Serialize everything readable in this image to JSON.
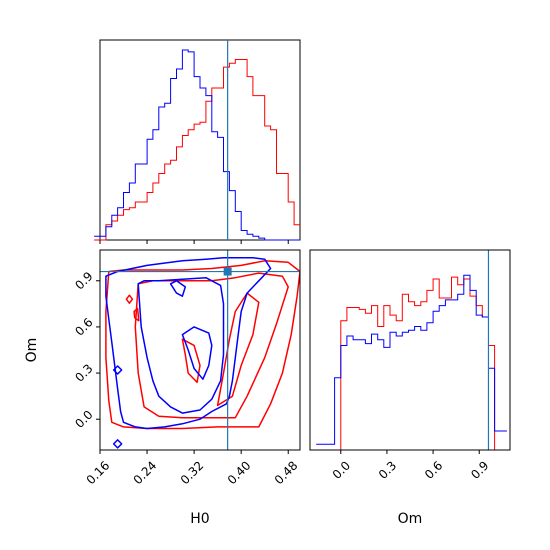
{
  "chart_data": {
    "type": "corner",
    "parameters": [
      "H0",
      "Om"
    ],
    "colors": {
      "chain1": "#ff0000",
      "chain2": "#0000ff",
      "truth": "#1f77b4"
    },
    "truth": {
      "H0": 0.377,
      "Om": 0.96
    },
    "axes": {
      "H0": {
        "range": [
          0.16,
          0.5
        ],
        "ticks": [
          0.16,
          0.24,
          0.32,
          0.4,
          0.48
        ],
        "ticklabels": [
          "0.16",
          "0.24",
          "0.32",
          "0.40",
          "0.48"
        ],
        "label": "H0"
      },
      "Om": {
        "range": [
          -0.2,
          1.1
        ],
        "ticks": [
          0.0,
          0.3,
          0.6,
          0.9
        ],
        "ticklabels": [
          "0.0",
          "0.3",
          "0.6",
          "0.9"
        ],
        "label": "Om"
      }
    },
    "hist_H0": {
      "red": [
        [
          0.155,
          0.0
        ],
        [
          0.165,
          0.0
        ],
        [
          0.175,
          0.08
        ],
        [
          0.185,
          0.1
        ],
        [
          0.195,
          0.13
        ],
        [
          0.205,
          0.16
        ],
        [
          0.215,
          0.17
        ],
        [
          0.225,
          0.2
        ],
        [
          0.235,
          0.2
        ],
        [
          0.245,
          0.25
        ],
        [
          0.255,
          0.3
        ],
        [
          0.265,
          0.35
        ],
        [
          0.275,
          0.4
        ],
        [
          0.285,
          0.42
        ],
        [
          0.295,
          0.49
        ],
        [
          0.305,
          0.55
        ],
        [
          0.315,
          0.58
        ],
        [
          0.325,
          0.61
        ],
        [
          0.335,
          0.62
        ],
        [
          0.345,
          0.73
        ],
        [
          0.355,
          0.8
        ],
        [
          0.365,
          0.8
        ],
        [
          0.375,
          0.91
        ],
        [
          0.385,
          0.93
        ],
        [
          0.395,
          0.95
        ],
        [
          0.405,
          0.95
        ],
        [
          0.415,
          0.86
        ],
        [
          0.425,
          0.76
        ],
        [
          0.435,
          0.76
        ],
        [
          0.445,
          0.6
        ],
        [
          0.455,
          0.58
        ],
        [
          0.465,
          0.35
        ],
        [
          0.475,
          0.35
        ],
        [
          0.485,
          0.2
        ],
        [
          0.495,
          0.08
        ]
      ],
      "blue": [
        [
          0.155,
          0.02
        ],
        [
          0.165,
          0.02
        ],
        [
          0.175,
          0.07
        ],
        [
          0.185,
          0.13
        ],
        [
          0.195,
          0.17
        ],
        [
          0.205,
          0.25
        ],
        [
          0.215,
          0.3
        ],
        [
          0.225,
          0.4
        ],
        [
          0.235,
          0.4
        ],
        [
          0.245,
          0.53
        ],
        [
          0.255,
          0.58
        ],
        [
          0.265,
          0.7
        ],
        [
          0.275,
          0.72
        ],
        [
          0.285,
          0.85
        ],
        [
          0.295,
          0.9
        ],
        [
          0.305,
          1.0
        ],
        [
          0.315,
          0.99
        ],
        [
          0.325,
          0.86
        ],
        [
          0.335,
          0.8
        ],
        [
          0.345,
          0.76
        ],
        [
          0.355,
          0.57
        ],
        [
          0.365,
          0.54
        ],
        [
          0.375,
          0.36
        ],
        [
          0.385,
          0.26
        ],
        [
          0.395,
          0.15
        ],
        [
          0.405,
          0.05
        ],
        [
          0.415,
          0.03
        ],
        [
          0.425,
          0.02
        ],
        [
          0.435,
          0.01
        ],
        [
          0.445,
          0.0
        ],
        [
          0.455,
          0.0
        ],
        [
          0.465,
          0.0
        ],
        [
          0.475,
          0.0
        ],
        [
          0.485,
          0.0
        ],
        [
          0.495,
          0.0
        ]
      ]
    },
    "hist_Om": {
      "red": [
        [
          -0.14,
          0.0
        ],
        [
          -0.1,
          0.0
        ],
        [
          -0.06,
          0.0
        ],
        [
          -0.02,
          0.0
        ],
        [
          0.02,
          0.68
        ],
        [
          0.06,
          0.75
        ],
        [
          0.1,
          0.75
        ],
        [
          0.14,
          0.74
        ],
        [
          0.18,
          0.72
        ],
        [
          0.22,
          0.76
        ],
        [
          0.26,
          0.65
        ],
        [
          0.3,
          0.76
        ],
        [
          0.34,
          0.71
        ],
        [
          0.38,
          0.68
        ],
        [
          0.42,
          0.82
        ],
        [
          0.46,
          0.78
        ],
        [
          0.5,
          0.76
        ],
        [
          0.54,
          0.78
        ],
        [
          0.58,
          0.84
        ],
        [
          0.62,
          0.9
        ],
        [
          0.66,
          0.8
        ],
        [
          0.7,
          0.8
        ],
        [
          0.74,
          0.91
        ],
        [
          0.78,
          0.87
        ],
        [
          0.82,
          0.9
        ],
        [
          0.86,
          0.81
        ],
        [
          0.9,
          0.76
        ],
        [
          0.94,
          0.7
        ],
        [
          0.98,
          0.55
        ],
        [
          1.02,
          0.0
        ],
        [
          1.06,
          0.0
        ]
      ],
      "blue": [
        [
          -0.14,
          0.03
        ],
        [
          -0.1,
          0.03
        ],
        [
          -0.06,
          0.03
        ],
        [
          -0.02,
          0.38
        ],
        [
          0.02,
          0.55
        ],
        [
          0.06,
          0.6
        ],
        [
          0.1,
          0.58
        ],
        [
          0.14,
          0.58
        ],
        [
          0.18,
          0.56
        ],
        [
          0.22,
          0.61
        ],
        [
          0.26,
          0.58
        ],
        [
          0.3,
          0.54
        ],
        [
          0.34,
          0.62
        ],
        [
          0.38,
          0.6
        ],
        [
          0.42,
          0.62
        ],
        [
          0.46,
          0.63
        ],
        [
          0.5,
          0.65
        ],
        [
          0.54,
          0.63
        ],
        [
          0.58,
          0.67
        ],
        [
          0.62,
          0.73
        ],
        [
          0.66,
          0.76
        ],
        [
          0.7,
          0.79
        ],
        [
          0.74,
          0.79
        ],
        [
          0.78,
          0.82
        ],
        [
          0.82,
          0.92
        ],
        [
          0.86,
          0.84
        ],
        [
          0.9,
          0.71
        ],
        [
          0.94,
          0.7
        ],
        [
          0.98,
          0.43
        ],
        [
          1.02,
          0.1
        ],
        [
          1.06,
          0.1
        ]
      ]
    },
    "contours_2d": {
      "red": [
        [
          [
            0.175,
            0.96
          ],
          [
            0.17,
            0.7
          ],
          [
            0.17,
            0.4
          ],
          [
            0.175,
            0.12
          ],
          [
            0.18,
            -0.02
          ],
          [
            0.2,
            -0.05
          ],
          [
            0.24,
            -0.06
          ],
          [
            0.3,
            -0.06
          ],
          [
            0.36,
            -0.05
          ],
          [
            0.4,
            -0.05
          ],
          [
            0.43,
            -0.05
          ],
          [
            0.45,
            0.1
          ],
          [
            0.47,
            0.3
          ],
          [
            0.485,
            0.55
          ],
          [
            0.495,
            0.8
          ],
          [
            0.5,
            0.96
          ],
          [
            0.48,
            1.02
          ],
          [
            0.44,
            1.03
          ],
          [
            0.4,
            1.0
          ],
          [
            0.35,
            0.98
          ],
          [
            0.3,
            0.97
          ],
          [
            0.25,
            0.97
          ],
          [
            0.2,
            0.97
          ],
          [
            0.175,
            0.96
          ]
        ],
        [
          [
            0.225,
            0.88
          ],
          [
            0.22,
            0.6
          ],
          [
            0.225,
            0.3
          ],
          [
            0.235,
            0.08
          ],
          [
            0.26,
            0.02
          ],
          [
            0.3,
            0.01
          ],
          [
            0.35,
            0.01
          ],
          [
            0.39,
            0.01
          ],
          [
            0.41,
            0.15
          ],
          [
            0.44,
            0.4
          ],
          [
            0.46,
            0.62
          ],
          [
            0.48,
            0.86
          ],
          [
            0.47,
            0.93
          ],
          [
            0.43,
            0.95
          ],
          [
            0.39,
            0.92
          ],
          [
            0.35,
            0.9
          ],
          [
            0.3,
            0.9
          ],
          [
            0.25,
            0.9
          ],
          [
            0.225,
            0.88
          ]
        ],
        [
          [
            0.36,
            0.09
          ],
          [
            0.37,
            0.3
          ],
          [
            0.38,
            0.52
          ],
          [
            0.39,
            0.7
          ],
          [
            0.41,
            0.82
          ],
          [
            0.43,
            0.76
          ],
          [
            0.42,
            0.55
          ],
          [
            0.4,
            0.35
          ],
          [
            0.385,
            0.15
          ],
          [
            0.36,
            0.09
          ]
        ],
        [
          [
            0.3,
            0.52
          ],
          [
            0.305,
            0.42
          ],
          [
            0.31,
            0.3
          ],
          [
            0.325,
            0.24
          ],
          [
            0.33,
            0.35
          ],
          [
            0.32,
            0.48
          ],
          [
            0.3,
            0.52
          ]
        ],
        [
          [
            0.218,
            0.7
          ],
          [
            0.224,
            0.72
          ],
          [
            0.226,
            0.64
          ],
          [
            0.219,
            0.66
          ],
          [
            0.218,
            0.7
          ]
        ]
      ],
      "blue": [
        [
          [
            0.17,
            0.93
          ],
          [
            0.19,
            0.96
          ],
          [
            0.24,
            1.0
          ],
          [
            0.3,
            1.03
          ],
          [
            0.34,
            1.04
          ],
          [
            0.37,
            1.05
          ],
          [
            0.4,
            1.05
          ],
          [
            0.42,
            1.05
          ],
          [
            0.44,
            1.04
          ],
          [
            0.45,
            0.98
          ],
          [
            0.43,
            0.9
          ],
          [
            0.41,
            0.82
          ],
          [
            0.4,
            0.7
          ],
          [
            0.395,
            0.55
          ],
          [
            0.39,
            0.4
          ],
          [
            0.385,
            0.25
          ],
          [
            0.38,
            0.15
          ],
          [
            0.375,
            0.1
          ],
          [
            0.35,
            0.05
          ],
          [
            0.33,
            0.0
          ],
          [
            0.3,
            -0.03
          ],
          [
            0.27,
            -0.05
          ],
          [
            0.24,
            -0.06
          ],
          [
            0.22,
            -0.05
          ],
          [
            0.2,
            -0.02
          ],
          [
            0.195,
            0.05
          ],
          [
            0.19,
            0.2
          ],
          [
            0.185,
            0.35
          ],
          [
            0.18,
            0.5
          ],
          [
            0.175,
            0.65
          ],
          [
            0.17,
            0.8
          ],
          [
            0.17,
            0.93
          ]
        ],
        [
          [
            0.225,
            0.88
          ],
          [
            0.23,
            0.6
          ],
          [
            0.24,
            0.4
          ],
          [
            0.25,
            0.25
          ],
          [
            0.26,
            0.15
          ],
          [
            0.28,
            0.08
          ],
          [
            0.3,
            0.04
          ],
          [
            0.33,
            0.06
          ],
          [
            0.35,
            0.13
          ],
          [
            0.365,
            0.25
          ],
          [
            0.37,
            0.42
          ],
          [
            0.37,
            0.6
          ],
          [
            0.37,
            0.75
          ],
          [
            0.365,
            0.87
          ],
          [
            0.34,
            0.92
          ],
          [
            0.3,
            0.91
          ],
          [
            0.26,
            0.9
          ],
          [
            0.235,
            0.9
          ],
          [
            0.225,
            0.88
          ]
        ],
        [
          [
            0.3,
            0.55
          ],
          [
            0.31,
            0.45
          ],
          [
            0.32,
            0.33
          ],
          [
            0.335,
            0.26
          ],
          [
            0.345,
            0.35
          ],
          [
            0.35,
            0.48
          ],
          [
            0.345,
            0.56
          ],
          [
            0.32,
            0.6
          ],
          [
            0.3,
            0.55
          ]
        ],
        [
          [
            0.28,
            0.88
          ],
          [
            0.29,
            0.82
          ],
          [
            0.3,
            0.8
          ],
          [
            0.305,
            0.86
          ],
          [
            0.29,
            0.9
          ],
          [
            0.28,
            0.88
          ]
        ]
      ],
      "blue_isolated_points": [
        [
          0.19,
          0.32
        ],
        [
          0.19,
          -0.16
        ]
      ],
      "red_isolated_points": [
        [
          0.21,
          0.78
        ]
      ]
    }
  }
}
